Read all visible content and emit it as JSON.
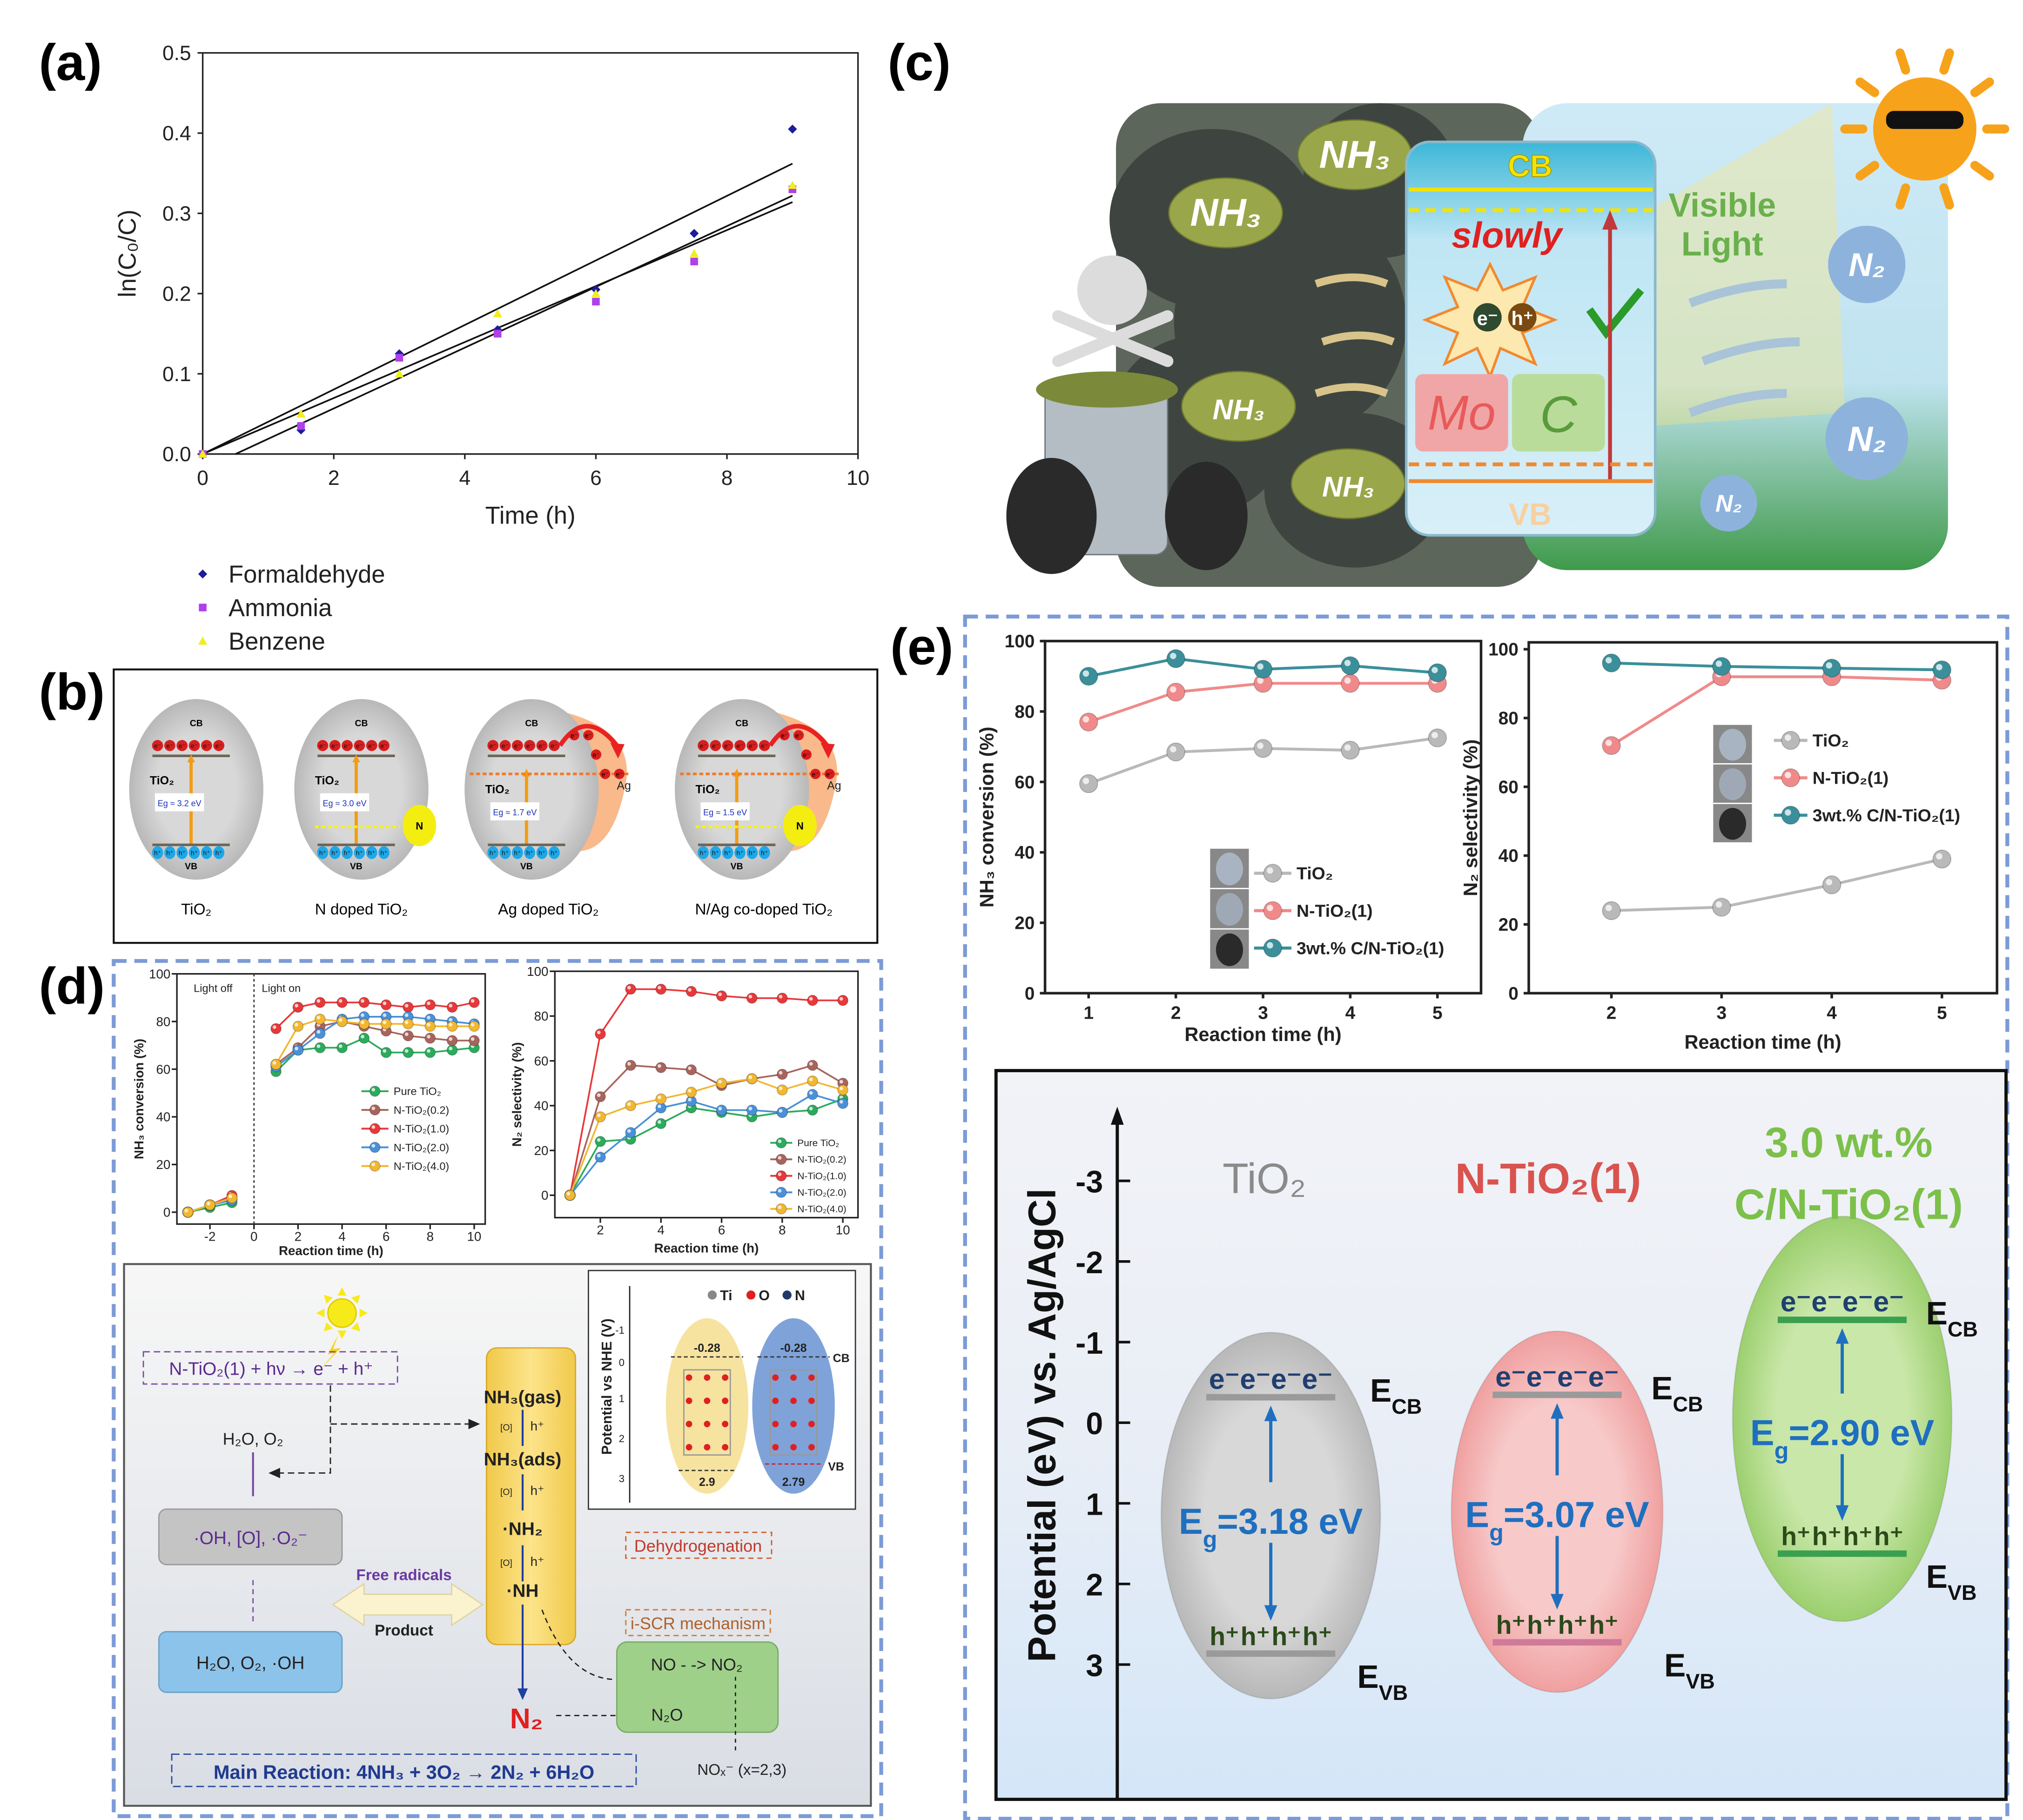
{
  "panel_labels": {
    "a": "(a)",
    "b": "(b)",
    "c": "(c)",
    "d": "(d)",
    "e": "(e)"
  },
  "chart_data": [
    {
      "id": "a",
      "type": "scatter",
      "xlabel": "Time (h)",
      "ylabel": "ln(C₀/C)",
      "xlim": [
        0,
        10
      ],
      "ylim": [
        0,
        0.5
      ],
      "xticks": [
        "0",
        "2",
        "4",
        "6",
        "8",
        "10"
      ],
      "yticks": [
        "0.0",
        "0.1",
        "0.2",
        "0.3",
        "0.4",
        "0.5"
      ],
      "x": [
        0,
        1.5,
        3,
        4.5,
        6,
        7.5,
        9
      ],
      "series": [
        {
          "name": "Formaldehyde",
          "color": "#1c1c9c",
          "marker": "diamond",
          "values": [
            0,
            0.03,
            0.125,
            0.155,
            0.205,
            0.275,
            0.405
          ]
        },
        {
          "name": "Ammonia",
          "color": "#b040e8",
          "marker": "square",
          "values": [
            0,
            0.035,
            0.12,
            0.15,
            0.19,
            0.24,
            0.33
          ]
        },
        {
          "name": "Benzene",
          "color": "#eeee22",
          "marker": "triangle",
          "values": [
            0,
            0.05,
            0.1,
            0.175,
            0.2,
            0.25,
            0.335
          ]
        }
      ],
      "fit_lines": [
        {
          "x": [
            0,
            9
          ],
          "y": [
            0,
            0.362
          ]
        },
        {
          "x": [
            0.5,
            9
          ],
          "y": [
            0,
            0.322
          ]
        },
        {
          "x": [
            0,
            9
          ],
          "y": [
            0,
            0.314
          ]
        }
      ],
      "grid": false,
      "legend_position": "below"
    },
    {
      "id": "d1",
      "type": "line",
      "xlabel": "Reaction time (h)",
      "ylabel": "NH₃ conversion (%)",
      "xlim": [
        -3.5,
        10.5
      ],
      "ylim": [
        -5,
        100
      ],
      "xticks": [
        "-2",
        "0",
        "2",
        "4",
        "6",
        "8",
        "10"
      ],
      "yticks": [
        "0",
        "20",
        "40",
        "60",
        "80",
        "100"
      ],
      "annotations": [
        "Light off",
        "Light on"
      ],
      "x": [
        -3,
        -2,
        -1,
        1,
        2,
        3,
        4,
        5,
        6,
        7,
        8,
        9,
        10
      ],
      "series": [
        {
          "name": "Pure TiO₂",
          "color": "#2bab5c",
          "values": [
            0,
            2,
            4,
            59,
            68,
            69,
            69,
            73,
            67,
            67,
            67,
            68,
            69
          ]
        },
        {
          "name": "N-TiO₂(0.2)",
          "color": "#a8645c",
          "values": [
            0,
            3,
            6,
            62,
            69,
            78,
            80,
            78,
            76,
            74,
            73,
            72,
            72
          ]
        },
        {
          "name": "N-TiO₂(1.0)",
          "color": "#e8383a",
          "values": [
            0,
            3,
            7,
            77,
            86,
            88,
            88,
            88,
            87,
            86,
            87,
            86,
            88
          ]
        },
        {
          "name": "N-TiO₂(2.0)",
          "color": "#4a90d9",
          "values": [
            0,
            3,
            5,
            61,
            68,
            75,
            81,
            82,
            82,
            82,
            81,
            80,
            79
          ]
        },
        {
          "name": "N-TiO₂(4.0)",
          "color": "#f2b731",
          "values": [
            0,
            3,
            6,
            62,
            78,
            81,
            80,
            79,
            79,
            79,
            78,
            78,
            78
          ]
        }
      ],
      "grid": false,
      "legend_position": "center-right"
    },
    {
      "id": "d2",
      "type": "line",
      "xlabel": "Reaction time (h)",
      "ylabel": "N₂ selectivity (%)",
      "xlim": [
        0.5,
        10.5
      ],
      "ylim": [
        -10,
        100
      ],
      "xticks": [
        "2",
        "4",
        "6",
        "8",
        "10"
      ],
      "yticks": [
        "0",
        "20",
        "40",
        "60",
        "80",
        "100"
      ],
      "x": [
        1,
        2,
        3,
        4,
        5,
        6,
        7,
        8,
        9,
        10
      ],
      "series": [
        {
          "name": "Pure TiO₂",
          "color": "#2bab5c",
          "values": [
            0,
            24,
            25,
            32,
            39,
            37,
            35,
            37,
            38,
            43
          ]
        },
        {
          "name": "N-TiO₂(0.2)",
          "color": "#a8645c",
          "values": [
            0,
            44,
            58,
            57,
            56,
            49,
            52,
            54,
            58,
            50
          ]
        },
        {
          "name": "N-TiO₂(1.0)",
          "color": "#e8383a",
          "values": [
            0,
            72,
            92,
            92,
            91,
            89,
            88,
            88,
            87,
            87
          ]
        },
        {
          "name": "N-TiO₂(2.0)",
          "color": "#4a90d9",
          "values": [
            0,
            17,
            28,
            39,
            42,
            38,
            38,
            37,
            45,
            41
          ]
        },
        {
          "name": "N-TiO₂(4.0)",
          "color": "#f2b731",
          "values": [
            0,
            35,
            40,
            43,
            46,
            50,
            52,
            47,
            51,
            47
          ]
        }
      ],
      "grid": false,
      "legend_position": "bottom-right"
    },
    {
      "id": "e1",
      "type": "line",
      "xlabel": "Reaction time (h)",
      "ylabel": "NH₃ conversion (%)",
      "xlim": [
        0.5,
        5.5
      ],
      "ylim": [
        0,
        100
      ],
      "xticks": [
        "1",
        "2",
        "3",
        "4",
        "5"
      ],
      "yticks": [
        "0",
        "20",
        "40",
        "60",
        "80",
        "100"
      ],
      "x": [
        1,
        2,
        3,
        4,
        5
      ],
      "series": [
        {
          "name": "TiO₂",
          "color": "#b9b9b9",
          "values": [
            59.5,
            68.5,
            69.5,
            69,
            72.5
          ]
        },
        {
          "name": "N-TiO₂(1)",
          "color": "#f08a8a",
          "values": [
            77,
            85.5,
            88,
            88,
            88
          ]
        },
        {
          "name": "3wt.% C/N-TiO₂(1)",
          "color": "#3a8f9a",
          "values": [
            90,
            95,
            92,
            93,
            91
          ]
        }
      ],
      "grid": false,
      "legend_position": "bottom-right"
    },
    {
      "id": "e2",
      "type": "line",
      "xlabel": "Reaction time (h)",
      "ylabel": "N₂ selectivity (%)",
      "xlim": [
        1.25,
        5.5
      ],
      "ylim": [
        0,
        102
      ],
      "xticks": [
        "2",
        "3",
        "4",
        "5"
      ],
      "yticks": [
        "0",
        "20",
        "40",
        "60",
        "80",
        "100"
      ],
      "x": [
        2,
        3,
        4,
        5
      ],
      "series": [
        {
          "name": "TiO₂",
          "color": "#b9b9b9",
          "values": [
            24,
            25,
            31.5,
            39
          ]
        },
        {
          "name": "N-TiO₂(1)",
          "color": "#f08a8a",
          "values": [
            72,
            92,
            92,
            91
          ]
        },
        {
          "name": "3wt.% C/N-TiO₂(1)",
          "color": "#3a8f9a",
          "values": [
            96,
            95,
            94.5,
            94
          ]
        }
      ],
      "grid": false,
      "legend_position": "center-right"
    }
  ],
  "panel_b": {
    "cb": "CB",
    "vb": "VB",
    "tio2": "TiO₂",
    "electron": "e⁻",
    "hole": "h⁺",
    "n": "N",
    "ag": "Ag",
    "items": [
      {
        "caption": "TiO₂",
        "eg": "Eg ≈ 3.2 eV"
      },
      {
        "caption": "N doped TiO₂",
        "eg": "Eg ≈ 3.0 eV"
      },
      {
        "caption": "Ag doped TiO₂",
        "eg": "Eg ≈ 1.7 eV"
      },
      {
        "caption": "N/Ag co-doped TiO₂",
        "eg": "Eg ≈ 1.5 eV"
      }
    ]
  },
  "panel_c": {
    "cb": "CB",
    "vb": "VB",
    "slowly": "slowly",
    "electron": "e⁻",
    "hole": "h⁺",
    "mo": "Mo",
    "c": "C",
    "nh3": "NH₃",
    "visible": "Visible",
    "light": "Light",
    "n2": "N₂"
  },
  "panel_d_scheme": {
    "excitation": "N-TiO₂(1) + hν → e⁻ + h⁺",
    "reactants": "H₂O, O₂",
    "radicals": "·OH, [O], ·O₂⁻",
    "source": "H₂O, O₂, ·OH",
    "free_radicals": "Free radicals",
    "product": "Product",
    "steps": [
      "NH₃(gas)",
      "NH₃(ads)",
      "·NH₂",
      "·NH"
    ],
    "step_o": "[O]",
    "step_h": "h⁺",
    "n2": "N₂",
    "dehydrogenation": "Dehydrogenation",
    "iscr": "i-SCR mechanism",
    "no_to_no2": "NO - -> NO₂",
    "n2o": "N₂O",
    "nox": "NOₓ⁻ (x=2,3)",
    "main_reaction": "Main Reaction:  4NH₃ + 3O₂ → 2N₂ + 6H₂O",
    "inset": {
      "legend": [
        "Ti",
        "O",
        "N"
      ],
      "ylabel": "Potential vs NHE (V)",
      "yticks": [
        "-1",
        "0",
        "1",
        "2",
        "3"
      ],
      "cb_values": [
        "-0.28",
        "-0.28"
      ],
      "vb_values": [
        "2.9",
        "2.79"
      ],
      "cb": "CB",
      "vb": "VB"
    }
  },
  "panel_e_band": {
    "ylabel": "Potential (eV) vs. Ag/AgCl",
    "yticks": [
      "-3",
      "-2",
      "-1",
      "0",
      "1",
      "2",
      "3"
    ],
    "e_letter": "E",
    "cb_sub": "CB",
    "vb_sub": "VB",
    "g_sub": "g",
    "electron": "e⁻",
    "hole": "h⁺",
    "materials": [
      {
        "name": "TiO₂",
        "eg_value": "=3.18 eV",
        "cb_potential": -0.34,
        "vb_potential": 2.84,
        "color": "#8a8a8a"
      },
      {
        "name": "N-TiO₂(1)",
        "eg_value": "=3.07 eV",
        "cb_potential": -0.37,
        "vb_potential": 2.7,
        "color": "#d9534f"
      },
      {
        "name_line1": "3.0 wt.%",
        "name": "C/N-TiO₂(1)",
        "eg_value": "=2.90 eV",
        "cb_potential": -1.3,
        "vb_potential": 1.6,
        "color": "#7cc04a"
      }
    ]
  }
}
